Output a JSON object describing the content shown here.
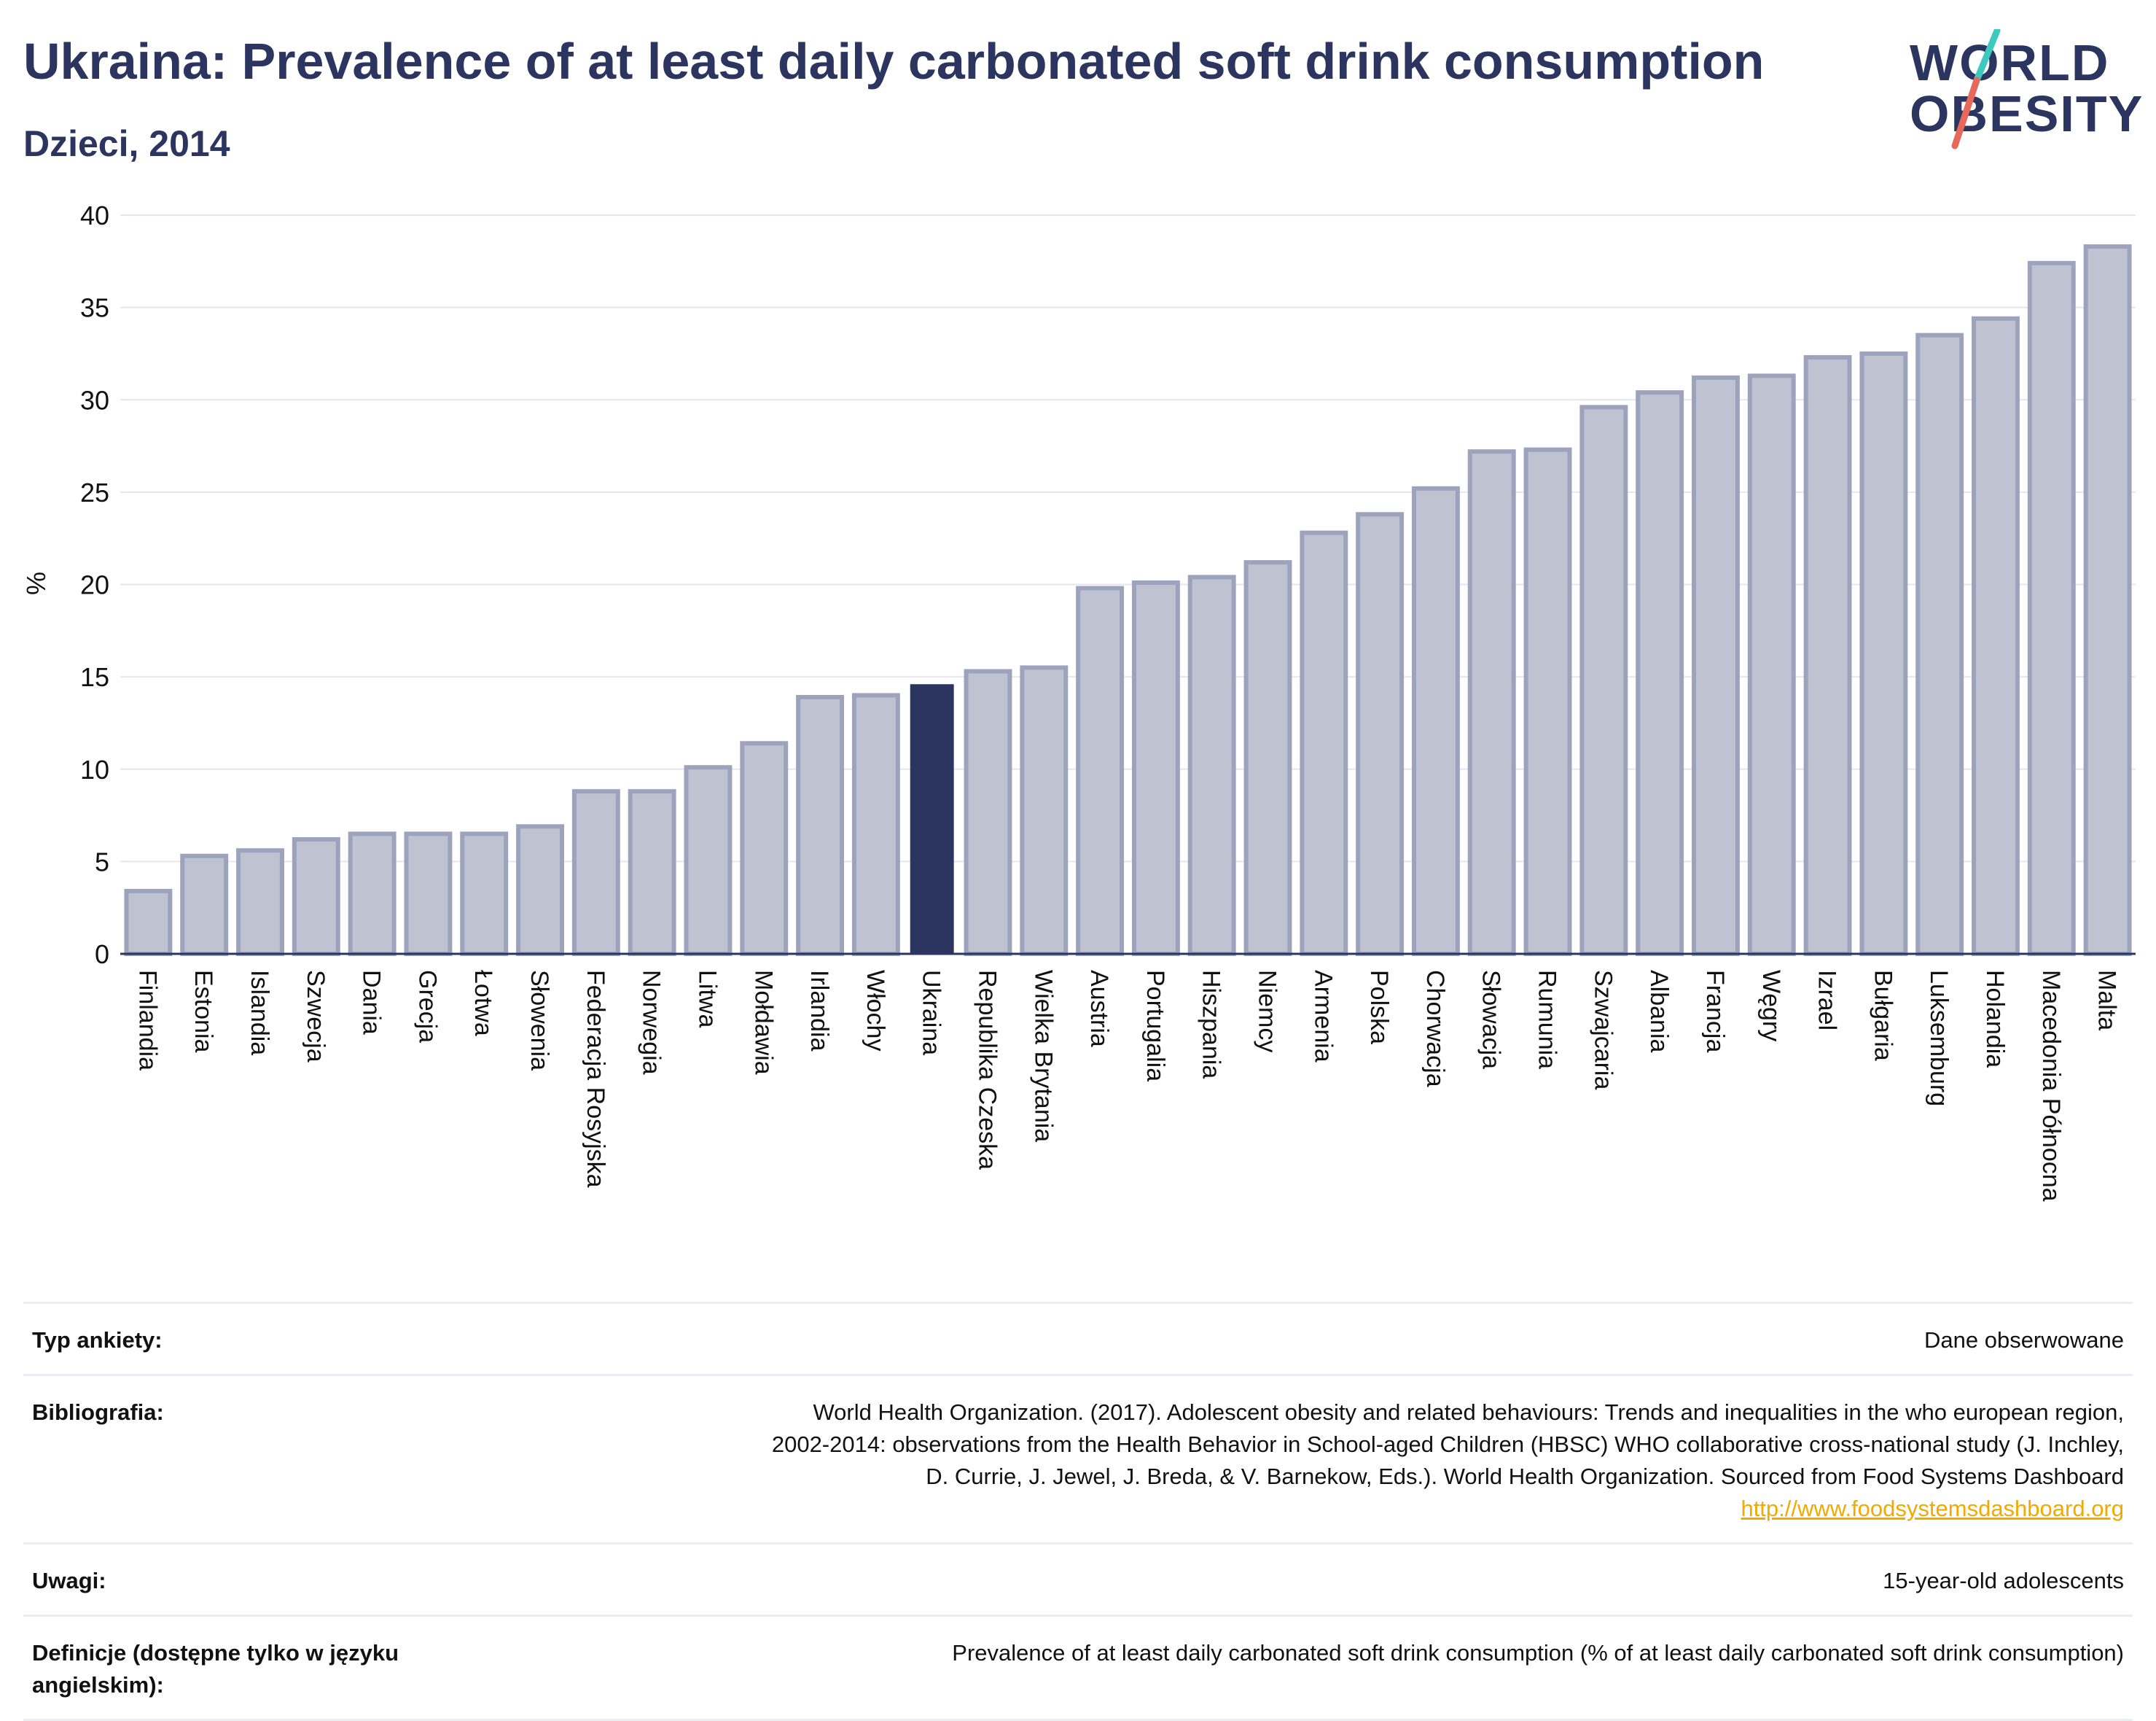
{
  "header": {
    "title": "Ukraina: Prevalence of at least daily carbonated soft drink consumption",
    "subtitle": "Dzieci, 2014"
  },
  "logo": {
    "line1": "WORLD",
    "line2": "OBESITY",
    "colors": {
      "teal": "#3ec8c0",
      "coral": "#e8685a"
    }
  },
  "colors": {
    "highlight": "#2b3560",
    "bar_fill": "#bfc2d0",
    "bar_stroke": "#9ea3bd",
    "grid": "#e6e6ee",
    "axis": "#2b3560"
  },
  "chart_data": {
    "type": "bar",
    "ylabel": "%",
    "ylim": [
      0,
      40
    ],
    "yticks": [
      0,
      5,
      10,
      15,
      20,
      25,
      30,
      35,
      40
    ],
    "grid": true,
    "highlight": "Ukraina",
    "categories": [
      "Finlandia",
      "Estonia",
      "Islandia",
      "Szwecja",
      "Dania",
      "Grecja",
      "Łotwa",
      "Słowenia",
      "Federacja Rosyjska",
      "Norwegia",
      "Litwa",
      "Mołdawia",
      "Irlandia",
      "Włochy",
      "Ukraina",
      "Republika Czeska",
      "Wielka Brytania",
      "Austria",
      "Portugalia",
      "Hiszpania",
      "Niemcy",
      "Armenia",
      "Polska",
      "Chorwacja",
      "Słowacja",
      "Rumunia",
      "Szwajcaria",
      "Albania",
      "Francja",
      "Węgry",
      "Izrael",
      "Bułgaria",
      "Luksemburg",
      "Holandia",
      "Macedonia Północna",
      "Malta"
    ],
    "values": [
      3.4,
      5.3,
      5.6,
      6.2,
      6.5,
      6.5,
      6.5,
      6.9,
      8.8,
      8.8,
      10.1,
      11.4,
      13.9,
      14.0,
      14.6,
      15.3,
      15.5,
      19.8,
      20.1,
      20.4,
      21.2,
      22.8,
      23.8,
      25.2,
      27.2,
      27.3,
      29.6,
      30.4,
      31.2,
      31.3,
      32.3,
      32.5,
      33.5,
      34.4,
      37.4,
      38.3
    ]
  },
  "meta": {
    "survey_label": "Typ ankiety:",
    "survey_value": "Dane obserwowane",
    "bib_label": "Bibliografia:",
    "bib_line1": "World Health Organization. (2017). Adolescent obesity and related behaviours: Trends and inequalities in the who european region,",
    "bib_line2": "2002-2014: observations from the Health Behavior in School-aged Children (HBSC) WHO collaborative cross-national study (J. Inchley,",
    "bib_line3": "D. Currie, J. Jewel, J. Breda, & V. Barnekow, Eds.). World Health Organization. Sourced from Food Systems Dashboard",
    "bib_link": "http://www.foodsystemsdashboard.org",
    "notes_label": "Uwagi:",
    "notes_value": "15-year-old adolescents",
    "def_label": "Definicje (dostępne tylko w języku angielskim):",
    "def_value": "Prevalence of at least daily carbonated soft drink consumption (% of at least daily carbonated soft drink consumption)"
  }
}
